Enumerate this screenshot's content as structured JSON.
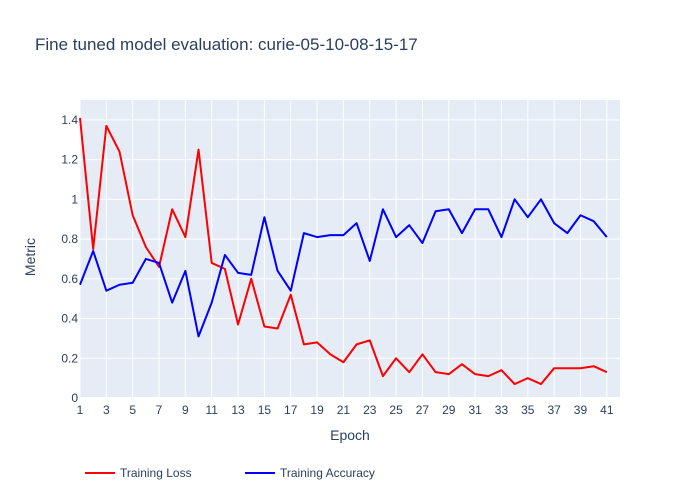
{
  "chart_data": {
    "type": "line",
    "title": "Fine tuned model evaluation: curie-05-10-08-15-17",
    "xlabel": "Epoch",
    "ylabel": "Metric",
    "xlim": [
      1,
      42
    ],
    "ylim": [
      0,
      1.5
    ],
    "x_ticks": [
      1,
      3,
      5,
      7,
      9,
      11,
      13,
      15,
      17,
      19,
      21,
      23,
      25,
      27,
      29,
      31,
      33,
      35,
      37,
      39,
      41
    ],
    "y_ticks": [
      {
        "value": 0,
        "label": "0"
      },
      {
        "value": 0.2,
        "label": "0.2"
      },
      {
        "value": 0.4,
        "label": "0.4"
      },
      {
        "value": 0.6,
        "label": "0.6"
      },
      {
        "value": 0.8,
        "label": "0.8"
      },
      {
        "value": 1.0,
        "label": "1"
      },
      {
        "value": 1.2,
        "label": "1.2"
      },
      {
        "value": 1.4,
        "label": "1.4"
      }
    ],
    "grid": true,
    "legend_position": "bottom-left",
    "x": [
      1,
      2,
      3,
      4,
      5,
      6,
      7,
      8,
      9,
      10,
      11,
      12,
      13,
      14,
      15,
      16,
      17,
      18,
      19,
      20,
      21,
      22,
      23,
      24,
      25,
      26,
      27,
      28,
      29,
      30,
      31,
      32,
      33,
      34,
      35,
      36,
      37,
      38,
      39,
      40,
      41
    ],
    "series": [
      {
        "name": "Training Loss",
        "color": "#ff0000",
        "values": [
          1.41,
          0.75,
          1.37,
          1.24,
          0.92,
          0.76,
          0.66,
          0.95,
          0.81,
          1.25,
          0.68,
          0.65,
          0.37,
          0.6,
          0.36,
          0.35,
          0.52,
          0.27,
          0.28,
          0.22,
          0.18,
          0.27,
          0.29,
          0.11,
          0.2,
          0.13,
          0.22,
          0.13,
          0.12,
          0.17,
          0.12,
          0.11,
          0.14,
          0.07,
          0.1,
          0.07,
          0.15,
          0.15,
          0.15,
          0.16,
          0.13
        ]
      },
      {
        "name": "Training Accuracy",
        "color": "#0000ff",
        "values": [
          0.57,
          0.74,
          0.54,
          0.57,
          0.58,
          0.7,
          0.68,
          0.48,
          0.64,
          0.31,
          0.48,
          0.72,
          0.63,
          0.62,
          0.91,
          0.64,
          0.54,
          0.83,
          0.81,
          0.82,
          0.82,
          0.88,
          0.69,
          0.95,
          0.81,
          0.87,
          0.78,
          0.94,
          0.95,
          0.83,
          0.95,
          0.95,
          0.81,
          1.0,
          0.91,
          1.0,
          0.88,
          0.83,
          0.92,
          0.89,
          0.81
        ]
      }
    ]
  },
  "colors": {
    "plot_background": "#e5ecf6",
    "grid": "#ffffff",
    "text": "#2a3f5f"
  }
}
